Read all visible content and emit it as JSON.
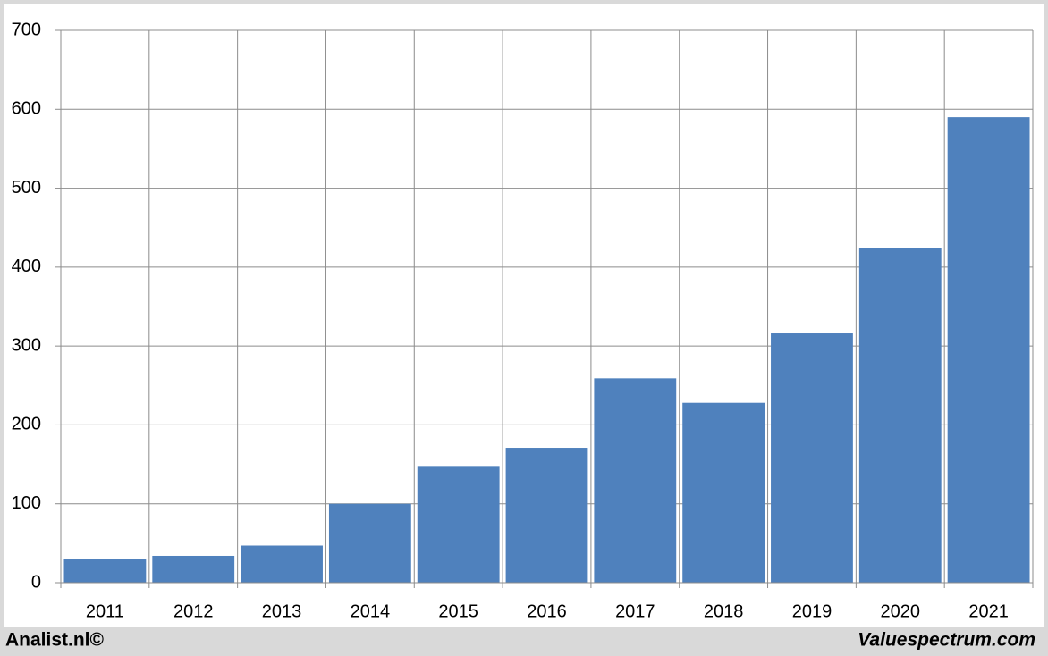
{
  "chart_data": {
    "type": "bar",
    "categories": [
      "2011",
      "2012",
      "2013",
      "2014",
      "2015",
      "2016",
      "2017",
      "2018",
      "2019",
      "2020",
      "2021"
    ],
    "values": [
      30,
      34,
      47,
      100,
      148,
      171,
      259,
      228,
      316,
      424,
      590
    ],
    "color": "#4f81bd",
    "ylim": [
      0,
      700
    ],
    "yticks": [
      0,
      100,
      200,
      300,
      400,
      500,
      600,
      700
    ],
    "grid": true
  },
  "footer": {
    "left": "Analist.nl©",
    "right": "Valuespectrum.com"
  }
}
